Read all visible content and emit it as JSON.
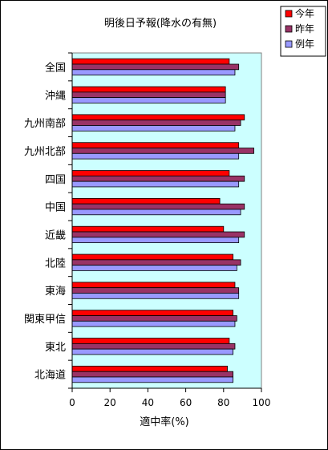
{
  "chart_data": {
    "type": "bar",
    "orientation": "horizontal",
    "title": "明後日予報(降水の有無)",
    "xlabel": "適中率(%)",
    "ylabel": "",
    "xlim": [
      0,
      100
    ],
    "xticks": [
      "0",
      "20",
      "40",
      "60",
      "80",
      "100"
    ],
    "grid": false,
    "legend_position": "top-right",
    "categories": [
      "全国",
      "沖縄",
      "九州南部",
      "九州北部",
      "四国",
      "中国",
      "近畿",
      "北陸",
      "東海",
      "関東甲信",
      "東北",
      "北海道"
    ],
    "series": [
      {
        "name": "今年",
        "color": "#ff0000",
        "values": [
          83,
          81,
          91,
          88,
          83,
          78,
          80,
          85,
          86,
          85,
          83,
          82
        ]
      },
      {
        "name": "昨年",
        "color": "#993366",
        "values": [
          88,
          81,
          89,
          96,
          91,
          91,
          91,
          89,
          88,
          87,
          86,
          85
        ]
      },
      {
        "name": "例年",
        "color": "#9999ff",
        "values": [
          86,
          81,
          86,
          88,
          88,
          89,
          88,
          87,
          88,
          86,
          85,
          85
        ]
      }
    ],
    "plot_area_color": "#ccffff"
  }
}
